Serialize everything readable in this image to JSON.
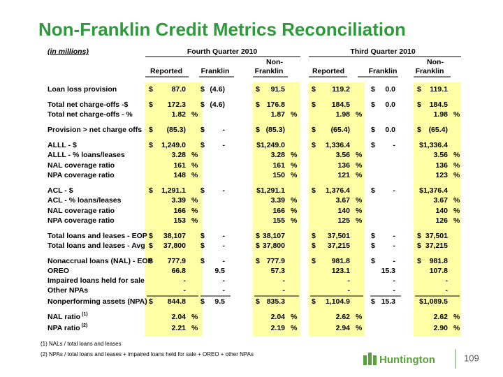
{
  "title": "Non-Franklin Credit Metrics Reconciliation",
  "table": {
    "units_note": "(in millions)",
    "groups": [
      "Fourth Quarter 2010",
      "Third Quarter 2010"
    ],
    "column_headers_top": [
      null,
      null,
      "Non-",
      null,
      null,
      "Non-"
    ],
    "column_headers": [
      "Reported",
      "Franklin",
      "Franklin",
      "Reported",
      "Franklin",
      "Franklin"
    ],
    "rows": [
      {
        "label": "Loan loss provision",
        "cells": [
          "$",
          "87.0",
          null,
          "$",
          "(4.6)",
          "$",
          "91.5",
          null,
          "$",
          "119.2",
          null,
          "$",
          "0.0",
          "$",
          "119.1",
          null
        ]
      },
      {
        "label": "Total net charge-offs -$",
        "cells": [
          "$",
          "172.3",
          null,
          "$",
          "(4.6)",
          "$",
          "176.8",
          null,
          "$",
          "184.5",
          null,
          "$",
          "0.0",
          "$",
          "184.5",
          null
        ]
      },
      {
        "label": "Total net charge-offs - %",
        "cells": [
          null,
          "1.82",
          "%",
          null,
          null,
          null,
          "1.87",
          "%",
          null,
          "1.98",
          "%",
          null,
          null,
          null,
          "1.98",
          "%"
        ]
      },
      {
        "label": "Provision > net charge offs",
        "cells": [
          "$",
          "(85.3)",
          null,
          "$",
          "-",
          "$",
          "(85.3)",
          null,
          "$",
          "(65.4)",
          null,
          "$",
          "0.0",
          "$",
          "(65.4)",
          null
        ]
      },
      {
        "label": "ALLL - $",
        "cells": [
          "$",
          "1,249.0",
          null,
          "$",
          "-",
          null,
          "$1,249.0",
          null,
          "$",
          "1,336.4",
          null,
          "$",
          "-",
          null,
          "$1,336.4",
          null
        ]
      },
      {
        "label": "ALLL - % loans/leases",
        "cells": [
          null,
          "3.28",
          "%",
          null,
          null,
          null,
          "3.28",
          "%",
          null,
          "3.56",
          "%",
          null,
          null,
          null,
          "3.56",
          "%"
        ]
      },
      {
        "label": "NAL coverage ratio",
        "cells": [
          null,
          "161",
          "%",
          null,
          null,
          null,
          "161",
          "%",
          null,
          "136",
          "%",
          null,
          null,
          null,
          "136",
          "%"
        ]
      },
      {
        "label": "NPA coverage ratio",
        "cells": [
          null,
          "148",
          "%",
          null,
          null,
          null,
          "150",
          "%",
          null,
          "121",
          "%",
          null,
          null,
          null,
          "123",
          "%"
        ]
      },
      {
        "label": "ACL - $",
        "cells": [
          "$",
          "1,291.1",
          null,
          "$",
          "-",
          null,
          "$1,291.1",
          null,
          "$",
          "1,376.4",
          null,
          "$",
          "-",
          null,
          "$1,376.4",
          null
        ]
      },
      {
        "label": "ACL - % loans/leases",
        "cells": [
          null,
          "3.39",
          "%",
          null,
          null,
          null,
          "3.39",
          "%",
          null,
          "3.67",
          "%",
          null,
          null,
          null,
          "3.67",
          "%"
        ]
      },
      {
        "label": "NAL coverage ratio",
        "cells": [
          null,
          "166",
          "%",
          null,
          null,
          null,
          "166",
          "%",
          null,
          "140",
          "%",
          null,
          null,
          null,
          "140",
          "%"
        ]
      },
      {
        "label": "NPA coverage ratio",
        "cells": [
          null,
          "153",
          "%",
          null,
          null,
          null,
          "155",
          "%",
          null,
          "125",
          "%",
          null,
          null,
          null,
          "126",
          "%"
        ]
      },
      {
        "label": "Total loans and leases - EOP",
        "cells": [
          "$",
          "38,107",
          null,
          "$",
          "-",
          "$",
          "38,107",
          null,
          "$",
          "37,501",
          null,
          "$",
          "-",
          "$",
          "37,501",
          null
        ]
      },
      {
        "label": "Total loans and leases - Avg",
        "cells": [
          "$",
          "37,800",
          null,
          "$",
          "-",
          "$",
          "37,800",
          null,
          "$",
          "37,215",
          null,
          "$",
          "-",
          "$",
          "37,215",
          null
        ]
      },
      {
        "label": "Nonaccrual loans (NAL) - EOP",
        "cells": [
          "$",
          "777.9",
          null,
          "$",
          "-",
          "$",
          "777.9",
          null,
          "$",
          "981.8",
          null,
          "$",
          "-",
          "$",
          "981.8",
          null
        ]
      },
      {
        "label": "OREO",
        "cells": [
          null,
          "66.8",
          null,
          null,
          "9.5",
          null,
          "57.3",
          null,
          null,
          "123.1",
          null,
          null,
          "15.3",
          null,
          "107.8",
          null
        ]
      },
      {
        "label": "Impaired loans held for sale",
        "cells": [
          null,
          "-",
          null,
          null,
          "-",
          null,
          "-",
          null,
          null,
          "-",
          null,
          null,
          "-",
          null,
          "-",
          null
        ]
      },
      {
        "label": "Other NPAs",
        "cells": [
          null,
          "-",
          null,
          null,
          "-",
          null,
          "-",
          null,
          null,
          "-",
          null,
          null,
          "-",
          null,
          "-",
          null
        ]
      },
      {
        "label": "Nonperforming assets (NPA)",
        "cells": [
          "$",
          "844.8",
          null,
          "$",
          "9.5",
          "$",
          "835.3",
          null,
          "$",
          "1,104.9",
          null,
          "$",
          "15.3",
          null,
          "$1,089.5",
          null
        ]
      },
      {
        "label": "NAL ratio",
        "note": "(1)",
        "cells": [
          null,
          "2.04",
          "%",
          null,
          null,
          null,
          "2.04",
          "%",
          null,
          "2.62",
          "%",
          null,
          null,
          null,
          "2.62",
          "%"
        ]
      },
      {
        "label": "NPA ratio",
        "note": "(2)",
        "cells": [
          null,
          "2.21",
          "%",
          null,
          null,
          null,
          "2.19",
          "%",
          null,
          "2.94",
          "%",
          null,
          null,
          null,
          "2.90",
          "%"
        ]
      }
    ]
  },
  "footnotes": [
    "(1) NALs / total loans and leases",
    "(2) NPAs / total loans and leases + impaired loans held for sale + OREO + other NPAs"
  ],
  "logo": "Huntington",
  "page_number": "109"
}
